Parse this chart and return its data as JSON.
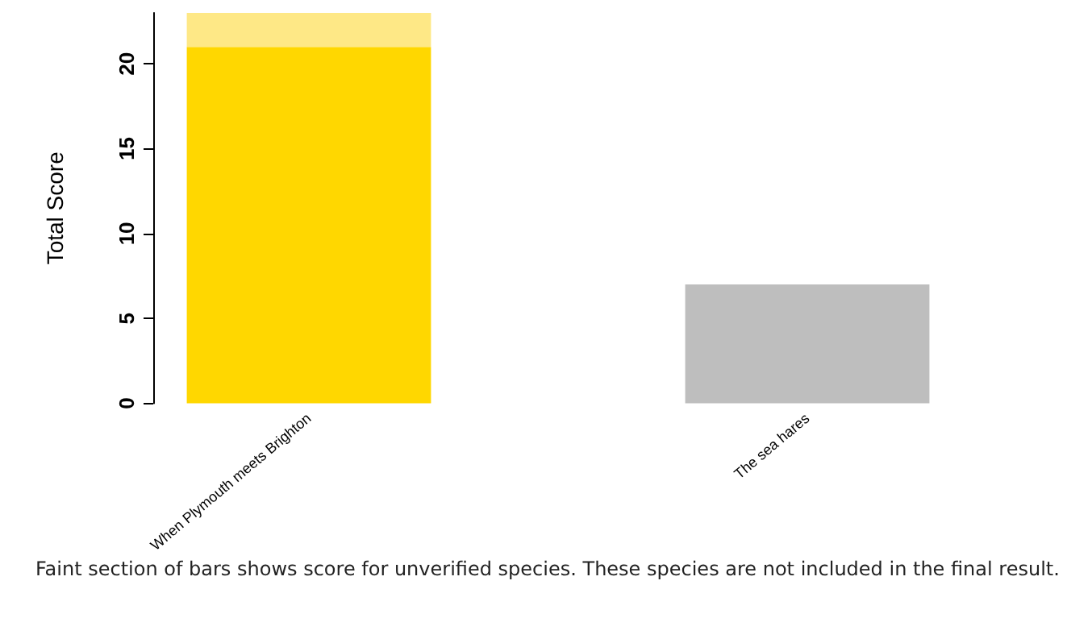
{
  "chart_data": {
    "type": "bar",
    "stacked": true,
    "ylabel": "Total Score",
    "categories": [
      "When Plymouth meets Brighton",
      "The sea hares"
    ],
    "series": [
      {
        "colors": [
          "#ffd700",
          "#bebebe"
        ],
        "values": [
          21,
          7
        ]
      },
      {
        "color": "#fee886",
        "values": [
          2,
          null
        ]
      }
    ],
    "ylim": [
      0,
      23
    ],
    "yticks": [
      0,
      5,
      10,
      15,
      20
    ],
    "grid": false,
    "annotations": [
      "Faint section of bars shows score for unverified species.  These species are not included in the final result."
    ]
  }
}
